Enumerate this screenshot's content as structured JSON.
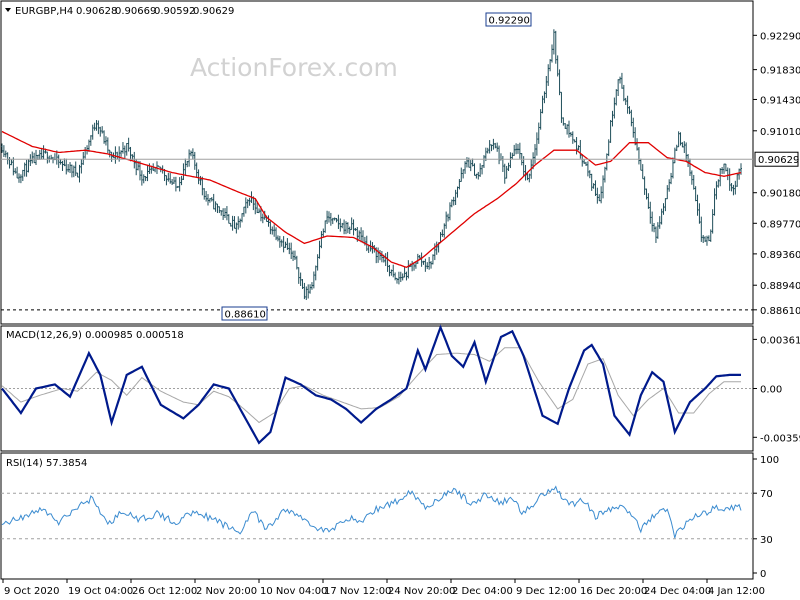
{
  "watermark": "ActionForex.com",
  "colors": {
    "background": "#ffffff",
    "bars": "#1f4e5a",
    "ma": "#e00000",
    "macd": "#001a8c",
    "signal": "#a8a8a8",
    "rsi": "#3c8cd0",
    "panel_border": "#000000",
    "current_price_line": "#a0a0a0"
  },
  "chart_data": [
    {
      "type": "ohlc",
      "title": "EURGBP,H4",
      "symbol": "EURGBP",
      "timeframe": "H4",
      "ohlc_header": {
        "open": "0.90628",
        "high": "0.90669",
        "low": "0.90592",
        "close": "0.90629"
      },
      "ylim": [
        0.8842,
        0.9275
      ],
      "y_ticks": [
        "0.92290",
        "0.91830",
        "0.91430",
        "0.91010",
        "0.90629",
        "0.90180",
        "0.89770",
        "0.89360",
        "0.88940",
        "0.88610"
      ],
      "current_price": 0.90629,
      "current_price_label": "0.90629",
      "annotations": [
        {
          "text": "0.92290",
          "value": 0.9229,
          "date": "9 Dec"
        },
        {
          "text": "0.88610",
          "value": 0.8861,
          "date": "11 Nov"
        }
      ],
      "x_labels": [
        "9 Oct 2020",
        "19 Oct 04:00",
        "26 Oct 12:00",
        "2 Nov 20:00",
        "10 Nov 04:00",
        "17 Nov 12:00",
        "24 Nov 20:00",
        "2 Dec 04:00",
        "9 Dec 12:00",
        "16 Dec 20:00",
        "24 Dec 04:00",
        "4 Jan 12:00"
      ],
      "close_path": [
        [
          0,
          0.908
        ],
        [
          8,
          0.904
        ],
        [
          16,
          0.906
        ],
        [
          24,
          0.907
        ],
        [
          30,
          0.9058
        ],
        [
          40,
          0.9045
        ],
        [
          50,
          0.9115
        ],
        [
          58,
          0.9063
        ],
        [
          66,
          0.908
        ],
        [
          74,
          0.904
        ],
        [
          84,
          0.905
        ],
        [
          92,
          0.9025
        ],
        [
          100,
          0.907
        ],
        [
          108,
          0.901
        ],
        [
          116,
          0.8993
        ],
        [
          124,
          0.897
        ],
        [
          131,
          0.9012
        ],
        [
          138,
          0.8985
        ],
        [
          146,
          0.896
        ],
        [
          152,
          0.894
        ],
        [
          156,
          0.892
        ],
        [
          160,
          0.888
        ],
        [
          164,
          0.8895
        ],
        [
          168,
          0.895
        ],
        [
          172,
          0.8985
        ],
        [
          178,
          0.8975
        ],
        [
          186,
          0.897
        ],
        [
          194,
          0.8945
        ],
        [
          202,
          0.893
        ],
        [
          208,
          0.89
        ],
        [
          214,
          0.891
        ],
        [
          220,
          0.893
        ],
        [
          226,
          0.892
        ],
        [
          232,
          0.896
        ],
        [
          240,
          0.902
        ],
        [
          246,
          0.906
        ],
        [
          252,
          0.904
        ],
        [
          258,
          0.9085
        ],
        [
          262,
          0.9075
        ],
        [
          266,
          0.904
        ],
        [
          272,
          0.908
        ],
        [
          278,
          0.9035
        ],
        [
          283,
          0.909
        ],
        [
          288,
          0.917
        ],
        [
          292,
          0.9229
        ],
        [
          296,
          0.912
        ],
        [
          302,
          0.909
        ],
        [
          308,
          0.906
        ],
        [
          312,
          0.903
        ],
        [
          316,
          0.901
        ],
        [
          319,
          0.905
        ],
        [
          322,
          0.911
        ],
        [
          326,
          0.9175
        ],
        [
          330,
          0.914
        ],
        [
          334,
          0.91
        ],
        [
          338,
          0.905
        ],
        [
          342,
          0.9
        ],
        [
          346,
          0.896
        ],
        [
          350,
          0.9
        ],
        [
          354,
          0.9045
        ],
        [
          358,
          0.9095
        ],
        [
          362,
          0.907
        ],
        [
          366,
          0.902
        ],
        [
          370,
          0.896
        ],
        [
          374,
          0.895
        ],
        [
          378,
          0.903
        ],
        [
          382,
          0.906
        ],
        [
          386,
          0.902
        ],
        [
          391,
          0.905
        ]
      ],
      "ma_path": [
        [
          0,
          0.91
        ],
        [
          16,
          0.908
        ],
        [
          30,
          0.9072
        ],
        [
          44,
          0.9075
        ],
        [
          56,
          0.907
        ],
        [
          70,
          0.906
        ],
        [
          90,
          0.9045
        ],
        [
          110,
          0.9035
        ],
        [
          124,
          0.902
        ],
        [
          134,
          0.901
        ],
        [
          140,
          0.8985
        ],
        [
          150,
          0.8965
        ],
        [
          160,
          0.895
        ],
        [
          172,
          0.896
        ],
        [
          186,
          0.8958
        ],
        [
          196,
          0.8945
        ],
        [
          206,
          0.8925
        ],
        [
          214,
          0.8918
        ],
        [
          222,
          0.893
        ],
        [
          236,
          0.896
        ],
        [
          250,
          0.899
        ],
        [
          262,
          0.901
        ],
        [
          272,
          0.903
        ],
        [
          282,
          0.9055
        ],
        [
          292,
          0.9075
        ],
        [
          304,
          0.9075
        ],
        [
          314,
          0.9055
        ],
        [
          322,
          0.906
        ],
        [
          332,
          0.9085
        ],
        [
          342,
          0.9085
        ],
        [
          352,
          0.9065
        ],
        [
          362,
          0.906
        ],
        [
          372,
          0.9045
        ],
        [
          382,
          0.904
        ],
        [
          391,
          0.9045
        ]
      ]
    },
    {
      "type": "line",
      "title": "MACD(12,26,9) 0.000985 0.000518",
      "indicator": "MACD",
      "params": "12,26,9",
      "macd_value": 0.000985,
      "signal_value": 0.000518,
      "ylim": [
        -0.0046,
        0.0046
      ],
      "y_ticks": [
        "0.003615",
        "0.00",
        "-0.003592"
      ],
      "macd_path": [
        [
          0,
          0.0
        ],
        [
          10,
          -0.0018
        ],
        [
          18,
          0.0
        ],
        [
          28,
          0.0003
        ],
        [
          36,
          -0.0006
        ],
        [
          46,
          0.0026
        ],
        [
          52,
          0.001
        ],
        [
          58,
          -0.0025
        ],
        [
          66,
          0.001
        ],
        [
          74,
          0.0016
        ],
        [
          84,
          -0.0012
        ],
        [
          96,
          -0.0022
        ],
        [
          104,
          -0.0012
        ],
        [
          112,
          0.0003
        ],
        [
          120,
          0.0
        ],
        [
          128,
          -0.002
        ],
        [
          136,
          -0.004
        ],
        [
          142,
          -0.0032
        ],
        [
          150,
          0.0008
        ],
        [
          158,
          0.0003
        ],
        [
          166,
          -0.0005
        ],
        [
          174,
          -0.0008
        ],
        [
          182,
          -0.0015
        ],
        [
          190,
          -0.0025
        ],
        [
          198,
          -0.0015
        ],
        [
          206,
          -0.0008
        ],
        [
          214,
          0.0
        ],
        [
          220,
          0.0028
        ],
        [
          224,
          0.0014
        ],
        [
          232,
          0.0045
        ],
        [
          238,
          0.0024
        ],
        [
          244,
          0.0016
        ],
        [
          250,
          0.0034
        ],
        [
          256,
          0.0005
        ],
        [
          264,
          0.0038
        ],
        [
          270,
          0.0042
        ],
        [
          276,
          0.0024
        ],
        [
          286,
          -0.002
        ],
        [
          294,
          -0.0026
        ],
        [
          300,
          0.0
        ],
        [
          308,
          0.0028
        ],
        [
          312,
          0.0032
        ],
        [
          318,
          0.0018
        ],
        [
          324,
          -0.002
        ],
        [
          332,
          -0.0034
        ],
        [
          338,
          -0.0005
        ],
        [
          344,
          0.0012
        ],
        [
          350,
          0.0005
        ],
        [
          356,
          -0.0032
        ],
        [
          364,
          -0.001
        ],
        [
          372,
          0.0
        ],
        [
          378,
          0.0009
        ],
        [
          385,
          0.001
        ]
      ],
      "signal_path": [
        [
          0,
          0.0002
        ],
        [
          10,
          -0.001
        ],
        [
          20,
          -0.0005
        ],
        [
          32,
          0.0
        ],
        [
          40,
          -0.0002
        ],
        [
          50,
          0.0012
        ],
        [
          58,
          0.0006
        ],
        [
          66,
          -0.0005
        ],
        [
          74,
          0.0008
        ],
        [
          84,
          -0.0002
        ],
        [
          96,
          -0.001
        ],
        [
          104,
          -0.0012
        ],
        [
          112,
          -0.0002
        ],
        [
          120,
          -0.0006
        ],
        [
          128,
          -0.0015
        ],
        [
          136,
          -0.0025
        ],
        [
          144,
          -0.0018
        ],
        [
          152,
          0.0
        ],
        [
          160,
          0.0002
        ],
        [
          170,
          -0.0005
        ],
        [
          180,
          -0.001
        ],
        [
          190,
          -0.0015
        ],
        [
          200,
          -0.0014
        ],
        [
          210,
          -0.0006
        ],
        [
          220,
          0.001
        ],
        [
          230,
          0.0025
        ],
        [
          240,
          0.0026
        ],
        [
          250,
          0.0025
        ],
        [
          258,
          0.002
        ],
        [
          266,
          0.003
        ],
        [
          274,
          0.003
        ],
        [
          284,
          0.0005
        ],
        [
          294,
          -0.0015
        ],
        [
          302,
          -0.0008
        ],
        [
          310,
          0.0018
        ],
        [
          318,
          0.0022
        ],
        [
          326,
          -0.0005
        ],
        [
          334,
          -0.002
        ],
        [
          342,
          -0.0008
        ],
        [
          350,
          0.0
        ],
        [
          358,
          -0.0018
        ],
        [
          366,
          -0.0018
        ],
        [
          374,
          -0.0004
        ],
        [
          382,
          0.0005
        ],
        [
          385,
          0.0005
        ]
      ]
    },
    {
      "type": "line",
      "title": "RSI(14) 57.3854",
      "indicator": "RSI",
      "period": 14,
      "value": 57.3854,
      "ylim": [
        0,
        100
      ],
      "y_ticks": [
        "100",
        "70",
        "30",
        "0"
      ],
      "levels": [
        70,
        30
      ],
      "rsi_path": [
        [
          0,
          43
        ],
        [
          12,
          50
        ],
        [
          22,
          56
        ],
        [
          30,
          44
        ],
        [
          40,
          58
        ],
        [
          48,
          66
        ],
        [
          56,
          42
        ],
        [
          64,
          55
        ],
        [
          72,
          46
        ],
        [
          82,
          52
        ],
        [
          92,
          44
        ],
        [
          102,
          55
        ],
        [
          110,
          48
        ],
        [
          118,
          42
        ],
        [
          126,
          35
        ],
        [
          132,
          55
        ],
        [
          140,
          38
        ],
        [
          150,
          56
        ],
        [
          158,
          49
        ],
        [
          166,
          40
        ],
        [
          174,
          36
        ],
        [
          182,
          49
        ],
        [
          190,
          45
        ],
        [
          198,
          56
        ],
        [
          208,
          62
        ],
        [
          216,
          72
        ],
        [
          224,
          58
        ],
        [
          232,
          66
        ],
        [
          240,
          73
        ],
        [
          248,
          60
        ],
        [
          256,
          69
        ],
        [
          264,
          61
        ],
        [
          270,
          66
        ],
        [
          276,
          52
        ],
        [
          284,
          66
        ],
        [
          292,
          76
        ],
        [
          300,
          60
        ],
        [
          308,
          64
        ],
        [
          314,
          50
        ],
        [
          320,
          55
        ],
        [
          330,
          58
        ],
        [
          338,
          38
        ],
        [
          344,
          50
        ],
        [
          352,
          56
        ],
        [
          356,
          33
        ],
        [
          364,
          48
        ],
        [
          372,
          52
        ],
        [
          378,
          58
        ],
        [
          385,
          57
        ]
      ]
    }
  ]
}
